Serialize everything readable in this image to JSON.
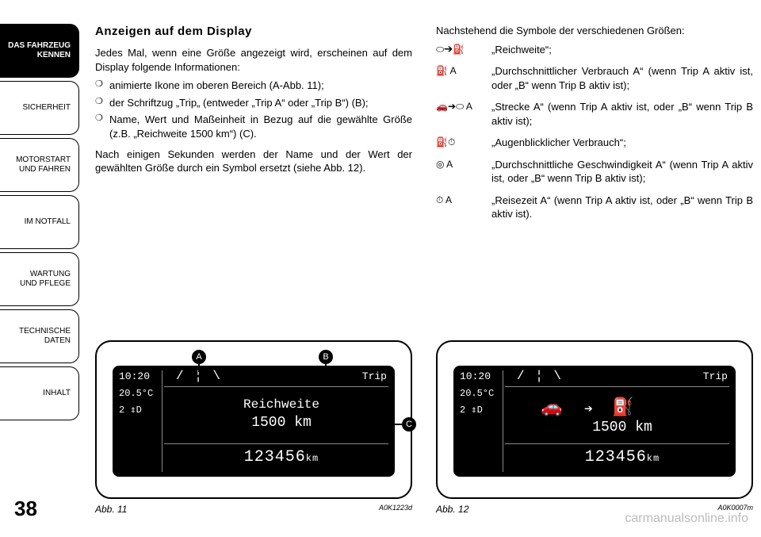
{
  "sidebar": {
    "tabs": [
      "DAS FAHRZEUG\nKENNEN",
      "SICHERHEIT",
      "MOTORSTART\nUND FAHREN",
      "IM NOTFALL",
      "WARTUNG\nUND PFLEGE",
      "TECHNISCHE\nDATEN",
      "INHALT"
    ],
    "active_index": 0
  },
  "page_number": "38",
  "left": {
    "heading": "Anzeigen auf dem Display",
    "intro": "Jedes Mal, wenn eine Größe angezeigt wird, erscheinen auf dem Display folgende Informationen:",
    "bullets": [
      "animierte Ikone im oberen Bereich (A-Abb. 11);",
      "der Schriftzug „Trip„ (entweder „Trip A“ oder „Trip B“) (B);",
      "Name, Wert und Maßeinheit in Bezug auf die gewählte Größe (z.B. „Reichweite 1500 km“) (C)."
    ],
    "after": "Nach einigen Sekunden werden der Name und der Wert der gewählten Größe durch ein Symbol ersetzt (siehe Abb. 12)."
  },
  "right": {
    "intro": "Nachstehend die Symbole der verschiedenen Größen:",
    "rows": [
      {
        "icon": "⬭➔⛽",
        "text": "„Reichweite“;"
      },
      {
        "icon": "⛽ A",
        "text": "„Durchschnittlicher Verbrauch A“ (wenn Trip A aktiv ist, oder „B“ wenn Trip B aktiv ist);"
      },
      {
        "icon": "🚗➔⬭ A",
        "text": "„Strecke A“ (wenn Trip A aktiv ist, oder „B“ wenn Trip B aktiv ist);"
      },
      {
        "icon": "⛽⏱",
        "text": "„Augenblicklicher Verbrauch“;"
      },
      {
        "icon": "◎ A",
        "text": "„Durchschnittliche Geschwindigkeit A“ (wenn Trip A aktiv ist, oder „B“ wenn Trip B aktiv ist);"
      },
      {
        "icon": "⏱ A",
        "text": "„Reisezeit A“ (wenn Trip A aktiv ist, oder „B“ wenn Trip B aktiv ist)."
      }
    ]
  },
  "fig11": {
    "time": "10:20",
    "temp": "20.5°C",
    "gear": "2 ⇕D",
    "lane": "/ ¦ \\",
    "trip": "Trip",
    "mid_title": "Reichweite",
    "mid_val": "1500 km",
    "odo": "123456",
    "odo_unit": "km",
    "callouts": {
      "A": "A",
      "B": "B",
      "C": "C"
    },
    "caption": "Abb. 11",
    "code": "A0K1223d"
  },
  "fig12": {
    "time": "10:20",
    "temp": "20.5°C",
    "gear": "2 ⇕D",
    "lane": "/ ¦ \\",
    "trip": "Trip",
    "mid_val": "1500 km",
    "odo": "123456",
    "odo_unit": "km",
    "caption": "Abb. 12",
    "code": "A0K0007m"
  },
  "watermark": "carmanualsonline.info"
}
